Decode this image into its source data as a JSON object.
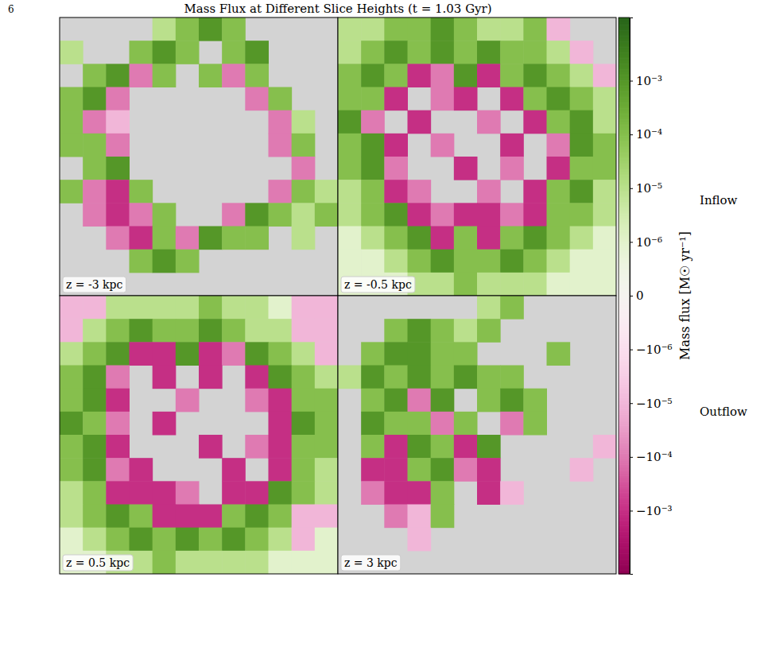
{
  "chart_data": {
    "type": "heatmap",
    "page_number": "6",
    "title": "Mass Flux at Different Slice Heights (t = 1.03 Gyr)",
    "tick_labels": false,
    "panels": [
      {
        "label": "z = -3 kpc",
        "cells": [
          [
            null,
            null,
            null,
            null,
            1e-05,
            0.0001,
            0.001,
            0.0001,
            null,
            null,
            null,
            null
          ],
          [
            1e-05,
            null,
            null,
            0.0001,
            0.001,
            0.0001,
            null,
            0.0001,
            0.001,
            null,
            null,
            null
          ],
          [
            null,
            0.0001,
            0.001,
            -0.0001,
            0.0001,
            null,
            0.0001,
            -0.0001,
            0.0001,
            null,
            null,
            null
          ],
          [
            0.0001,
            0.001,
            -0.0001,
            null,
            null,
            null,
            null,
            null,
            -0.0001,
            0.0001,
            null,
            null
          ],
          [
            0.0001,
            -0.0001,
            -1e-05,
            null,
            null,
            null,
            null,
            null,
            null,
            -0.0001,
            1e-05,
            null
          ],
          [
            0.0001,
            0.0001,
            -0.0001,
            null,
            null,
            null,
            null,
            null,
            null,
            -0.0001,
            0.0001,
            null
          ],
          [
            null,
            0.0001,
            0.001,
            null,
            null,
            null,
            null,
            null,
            null,
            null,
            -0.0001,
            null
          ],
          [
            0.0001,
            -0.0001,
            -0.001,
            0.0001,
            null,
            null,
            null,
            null,
            null,
            -0.0001,
            0.0001,
            1e-05
          ],
          [
            null,
            -0.0001,
            -0.001,
            -0.0001,
            0.0001,
            null,
            null,
            -0.0001,
            0.001,
            0.0001,
            1e-05,
            0.0001
          ],
          [
            null,
            null,
            -0.0001,
            -0.001,
            0.0001,
            -0.0001,
            0.001,
            0.0001,
            0.0001,
            null,
            1e-05,
            null
          ],
          [
            null,
            null,
            null,
            0.0001,
            0.001,
            0.0001,
            null,
            null,
            null,
            null,
            null,
            null
          ],
          [
            null,
            null,
            null,
            null,
            null,
            null,
            null,
            null,
            null,
            null,
            null,
            null
          ]
        ]
      },
      {
        "label": "z = -0.5 kpc",
        "cells": [
          [
            1e-05,
            1e-05,
            0.0001,
            0.0001,
            0.001,
            0.0001,
            1e-05,
            1e-05,
            0.0001,
            -1e-05,
            null,
            null
          ],
          [
            1e-05,
            0.0001,
            0.001,
            0.0001,
            0.001,
            0.0001,
            0.001,
            0.0001,
            0.0001,
            1e-05,
            -1e-05,
            null
          ],
          [
            0.0001,
            0.001,
            0.0001,
            -0.001,
            -0.0001,
            0.001,
            -0.001,
            0.0001,
            0.001,
            0.0001,
            1e-05,
            -1e-05
          ],
          [
            0.0001,
            0.0001,
            -0.001,
            null,
            -0.0001,
            -0.001,
            null,
            -0.001,
            0.0001,
            0.001,
            0.0001,
            1e-05
          ],
          [
            0.001,
            -0.0001,
            null,
            -0.001,
            null,
            null,
            -0.0001,
            null,
            -0.001,
            0.0001,
            0.001,
            1e-05
          ],
          [
            0.0001,
            0.001,
            -0.001,
            null,
            -0.0001,
            null,
            null,
            -0.001,
            null,
            -0.0001,
            0.001,
            0.0001
          ],
          [
            0.0001,
            0.001,
            -0.0001,
            null,
            null,
            -0.001,
            null,
            -0.0001,
            null,
            -0.001,
            0.0001,
            0.0001
          ],
          [
            1e-05,
            0.0001,
            -0.001,
            -0.0001,
            null,
            null,
            -0.0001,
            null,
            -0.001,
            0.0001,
            0.001,
            1e-05
          ],
          [
            1e-05,
            0.0001,
            0.001,
            -0.001,
            -0.0001,
            -0.001,
            -0.001,
            -0.0001,
            -0.001,
            0.0001,
            0.0001,
            1e-05
          ],
          [
            1e-06,
            1e-05,
            0.0001,
            0.001,
            -0.001,
            0.0001,
            -0.001,
            0.0001,
            0.001,
            0.0001,
            1e-05,
            1e-06
          ],
          [
            1e-06,
            1e-06,
            1e-05,
            0.0001,
            0.001,
            0.0001,
            0.0001,
            0.001,
            0.0001,
            1e-05,
            1e-06,
            1e-06
          ],
          [
            1e-06,
            1e-06,
            1e-06,
            1e-05,
            1e-05,
            0.0001,
            1e-05,
            1e-05,
            1e-05,
            1e-06,
            1e-06,
            1e-06
          ]
        ]
      },
      {
        "label": "z = 0.5 kpc",
        "cells": [
          [
            -1e-05,
            -1e-05,
            1e-05,
            1e-05,
            1e-05,
            1e-05,
            0.0001,
            1e-05,
            1e-05,
            1e-06,
            -1e-05,
            -1e-05
          ],
          [
            -1e-05,
            1e-05,
            0.0001,
            0.001,
            0.0001,
            0.0001,
            0.001,
            0.0001,
            1e-05,
            1e-05,
            -1e-05,
            -1e-05
          ],
          [
            1e-05,
            0.0001,
            0.001,
            -0.001,
            -0.001,
            0.001,
            -0.001,
            -0.0001,
            0.001,
            0.0001,
            1e-05,
            -1e-05
          ],
          [
            0.0001,
            0.001,
            -0.0001,
            null,
            -0.001,
            null,
            -0.001,
            null,
            -0.001,
            0.001,
            0.0001,
            1e-05
          ],
          [
            0.0001,
            0.001,
            -0.001,
            null,
            null,
            -0.0001,
            null,
            null,
            -0.0001,
            -0.001,
            0.0001,
            0.0001
          ],
          [
            0.001,
            0.0001,
            -0.0001,
            null,
            -0.001,
            null,
            null,
            null,
            null,
            -0.001,
            0.001,
            0.0001
          ],
          [
            0.0001,
            0.001,
            -0.001,
            null,
            null,
            null,
            -0.001,
            null,
            -0.0001,
            -0.001,
            0.0001,
            0.0001
          ],
          [
            0.0001,
            0.001,
            -0.0001,
            -0.001,
            null,
            null,
            null,
            -0.001,
            null,
            -0.001,
            0.0001,
            1e-05
          ],
          [
            1e-05,
            0.0001,
            -0.001,
            -0.001,
            -0.001,
            -0.0001,
            null,
            -0.001,
            -0.001,
            0.001,
            0.0001,
            1e-05
          ],
          [
            1e-05,
            0.0001,
            0.001,
            0.0001,
            -0.001,
            -0.001,
            -0.001,
            0.0001,
            0.001,
            0.0001,
            -1e-05,
            -1e-05
          ],
          [
            1e-06,
            1e-05,
            0.0001,
            0.001,
            0.0001,
            0.001,
            0.0001,
            0.001,
            0.0001,
            1e-05,
            -1e-05,
            1e-06
          ],
          [
            1e-06,
            1e-06,
            1e-05,
            1e-05,
            0.0001,
            1e-05,
            1e-05,
            1e-05,
            1e-05,
            1e-06,
            1e-06,
            1e-06
          ]
        ]
      },
      {
        "label": "z = 3 kpc",
        "cells": [
          [
            null,
            null,
            null,
            null,
            null,
            null,
            1e-05,
            0.0001,
            null,
            null,
            null,
            null
          ],
          [
            null,
            null,
            0.0001,
            0.001,
            0.0001,
            1e-05,
            0.0001,
            null,
            null,
            null,
            null,
            null
          ],
          [
            null,
            0.0001,
            0.001,
            0.001,
            0.0001,
            0.0001,
            null,
            null,
            null,
            0.0001,
            null,
            null
          ],
          [
            1e-05,
            0.001,
            0.0001,
            0.001,
            0.0001,
            0.001,
            0.0001,
            0.0001,
            null,
            null,
            null,
            null
          ],
          [
            null,
            0.0001,
            0.001,
            -0.0001,
            0.001,
            null,
            0.0001,
            0.001,
            0.0001,
            null,
            null,
            null
          ],
          [
            null,
            0.001,
            0.0001,
            0.0001,
            -0.0001,
            0.0001,
            null,
            -0.0001,
            0.0001,
            null,
            null,
            null
          ],
          [
            null,
            0.0001,
            -0.001,
            0.001,
            0.0001,
            -0.001,
            0.001,
            null,
            null,
            null,
            null,
            -1e-05
          ],
          [
            null,
            -0.001,
            -0.001,
            0.0001,
            0.001,
            -0.0001,
            -0.001,
            null,
            null,
            null,
            -1e-05,
            null
          ],
          [
            null,
            -0.0001,
            -0.001,
            -0.001,
            0.0001,
            null,
            -0.001,
            -1e-05,
            null,
            null,
            null,
            null
          ],
          [
            null,
            null,
            -0.0001,
            -1e-05,
            0.0001,
            null,
            null,
            null,
            null,
            null,
            null,
            null
          ],
          [
            null,
            null,
            null,
            -1e-05,
            null,
            null,
            null,
            null,
            null,
            null,
            null,
            null
          ],
          [
            null,
            null,
            null,
            null,
            null,
            null,
            null,
            null,
            null,
            null,
            null,
            null
          ]
        ]
      }
    ],
    "colorbar": {
      "label": "Mass flux [M☉ yr⁻¹]",
      "lim": [
        -0.015,
        0.015
      ],
      "ticks": [
        {
          "value": 0.001,
          "label": "10⁻³"
        },
        {
          "value": 0.0001,
          "label": "10⁻⁴"
        },
        {
          "value": 1e-05,
          "label": "10⁻⁵"
        },
        {
          "value": 1e-06,
          "label": "10⁻⁶"
        },
        0,
        {
          "value": -1e-06,
          "label": "−10⁻⁶"
        },
        {
          "value": -1e-05,
          "label": "−10⁻⁵"
        },
        {
          "value": -0.0001,
          "label": "−10⁻⁴"
        },
        {
          "value": -0.001,
          "label": "−10⁻³"
        }
      ],
      "annotations": [
        "Inflow",
        "Outflow"
      ]
    }
  }
}
